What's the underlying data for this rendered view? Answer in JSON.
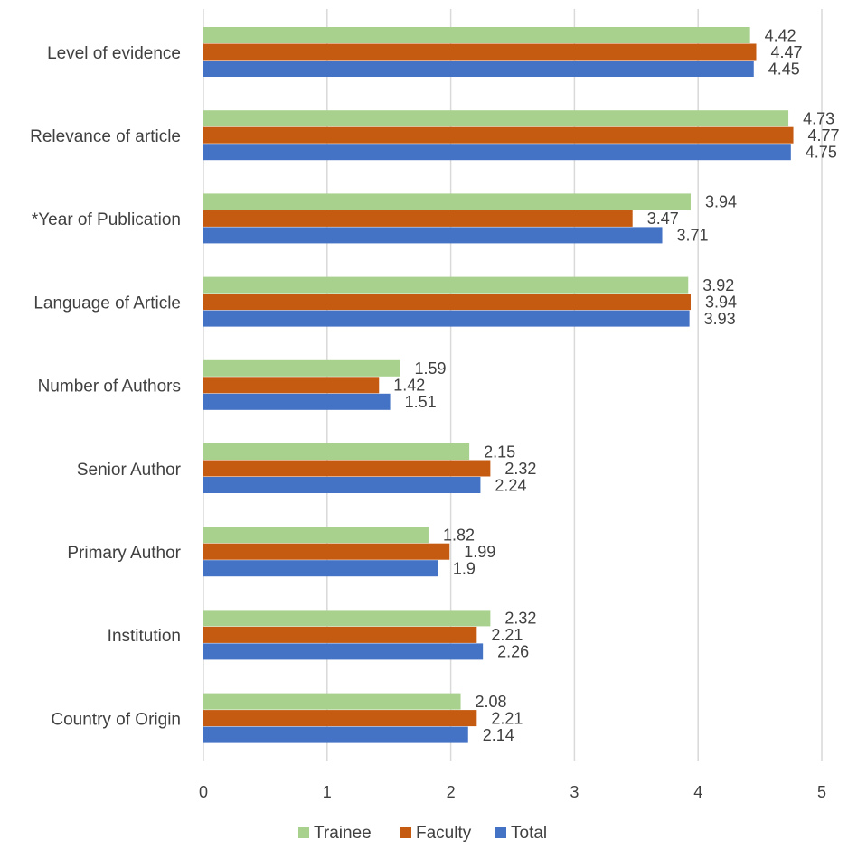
{
  "chart_data": {
    "type": "bar",
    "orientation": "horizontal",
    "title": "",
    "xlabel": "",
    "ylabel": "",
    "categories": [
      "Level of evidence",
      "Relevance of article",
      "*Year of Publication",
      "Language of Article",
      "Number of Authors",
      "Senior Author",
      "Primary Author",
      "Institution",
      "Country of Origin"
    ],
    "series": [
      {
        "name": "Trainee",
        "color": "#a9d18e",
        "values": [
          4.42,
          4.73,
          3.94,
          3.92,
          1.59,
          2.15,
          1.82,
          2.32,
          2.08
        ],
        "labels": [
          "4.42",
          "4.73",
          "3.94",
          "3.92",
          "1.59",
          "2.15",
          "1.82",
          "2.32",
          "2.08"
        ]
      },
      {
        "name": "Faculty",
        "color": "#c55a11",
        "values": [
          4.47,
          4.77,
          3.47,
          3.94,
          1.42,
          2.32,
          1.99,
          2.21,
          2.21
        ],
        "labels": [
          "4.47",
          "4.77",
          "3.47",
          "3.94",
          "1.42",
          "2.32",
          "1.99",
          "2.21",
          "2.21"
        ]
      },
      {
        "name": "Total",
        "color": "#4472c4",
        "values": [
          4.45,
          4.75,
          3.71,
          3.93,
          1.51,
          2.24,
          1.9,
          2.26,
          2.14
        ],
        "labels": [
          "4.45",
          "4.75",
          "3.71",
          "3.93",
          "1.51",
          "2.24",
          "1.9",
          "2.26",
          "2.14"
        ]
      }
    ],
    "xlim": [
      0,
      5
    ],
    "xticks": [
      "0",
      "1",
      "2",
      "3",
      "4",
      "5"
    ],
    "grid": true,
    "legend": "bottom"
  }
}
